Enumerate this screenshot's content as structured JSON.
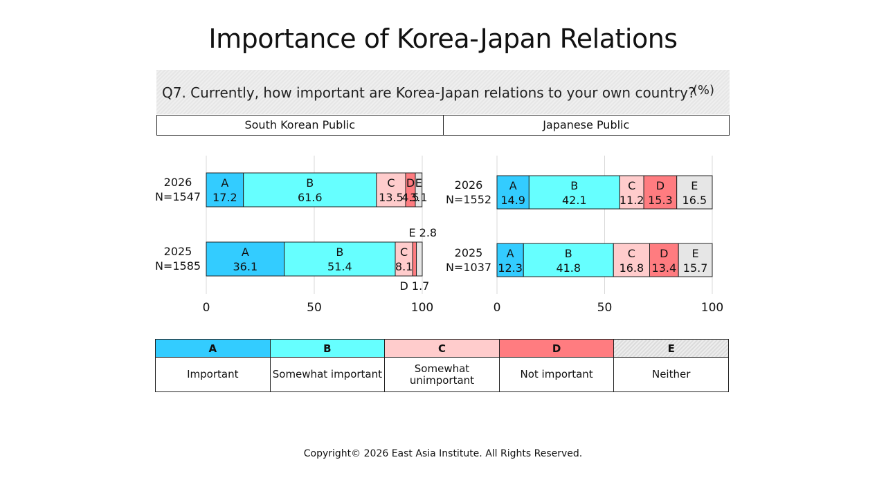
{
  "title": "Importance of Korea-Japan Relations",
  "question": "Q7. Currently, how important are Korea-Japan relations to your own country?",
  "unit": "(%)",
  "panels": [
    "South Korean Public",
    "Japanese Public"
  ],
  "categories": {
    "codes": [
      "A",
      "B",
      "C",
      "D",
      "E"
    ],
    "labels": [
      "Important",
      "Somewhat important",
      "Somewhat unimportant",
      "Not important",
      "Neither"
    ],
    "colors": [
      "#33ccff",
      "#66ffff",
      "#ffcccc",
      "#ff7c80",
      "#e6e6e6"
    ]
  },
  "chart_data": [
    {
      "type": "bar",
      "orientation": "horizontal",
      "stacked": true,
      "panel": "South Korean Public",
      "rows": [
        {
          "year": "2026",
          "n": "N=1547",
          "values": [
            17.2,
            61.6,
            13.5,
            4.5,
            3.1
          ]
        },
        {
          "year": "2025",
          "n": "N=1585",
          "values": [
            36.1,
            51.4,
            8.1,
            1.7,
            2.8
          ]
        }
      ],
      "xlim": [
        0,
        100
      ],
      "xticks": [
        0,
        50,
        100
      ],
      "grid": true
    },
    {
      "type": "bar",
      "orientation": "horizontal",
      "stacked": true,
      "panel": "Japanese Public",
      "rows": [
        {
          "year": "2026",
          "n": "N=1552",
          "values": [
            14.9,
            42.1,
            11.2,
            15.3,
            16.5
          ]
        },
        {
          "year": "2025",
          "n": "N=1037",
          "values": [
            12.3,
            41.8,
            16.8,
            13.4,
            15.7
          ]
        }
      ],
      "xlim": [
        0,
        100
      ],
      "xticks": [
        0,
        50,
        100
      ],
      "grid": true
    }
  ],
  "footer": "Copyright© 2026 East Asia Institute. All Rights Reserved."
}
